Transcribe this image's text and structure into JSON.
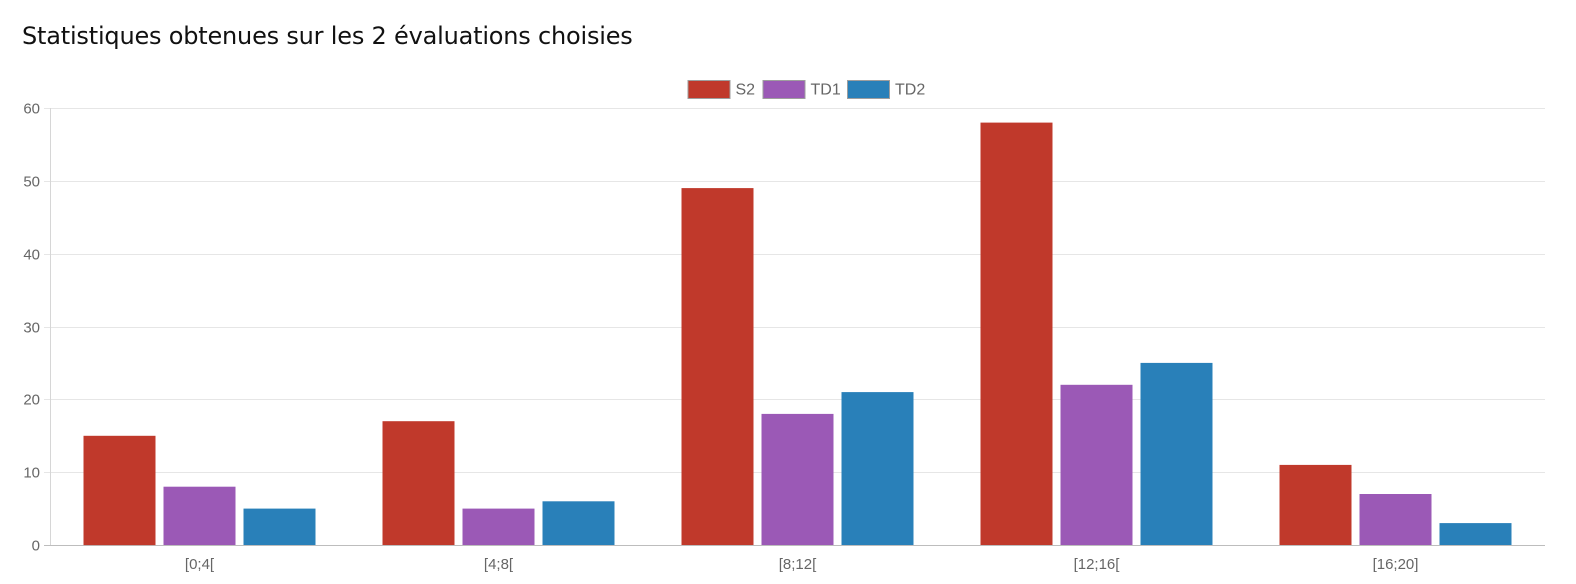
{
  "page": {
    "title": "Statistiques obtenues sur les 2 évaluations choisies"
  },
  "chart_data": {
    "type": "bar",
    "title": "",
    "xlabel": "",
    "ylabel": "",
    "categories": [
      "[0;4[",
      "[4;8[",
      "[8;12[",
      "[12;16[",
      "[16;20]"
    ],
    "series": [
      {
        "name": "S2",
        "color": "#c0392b",
        "values": [
          15,
          17,
          49,
          58,
          11
        ]
      },
      {
        "name": "TD1",
        "color": "#9b59b6",
        "values": [
          8,
          5,
          18,
          22,
          7
        ]
      },
      {
        "name": "TD2",
        "color": "#2980b9",
        "values": [
          5,
          6,
          21,
          25,
          3
        ]
      }
    ],
    "ylim": [
      0,
      60
    ],
    "yticks": [
      0,
      10,
      20,
      30,
      40,
      50,
      60
    ],
    "grid": true,
    "legend_position": "top-center"
  }
}
